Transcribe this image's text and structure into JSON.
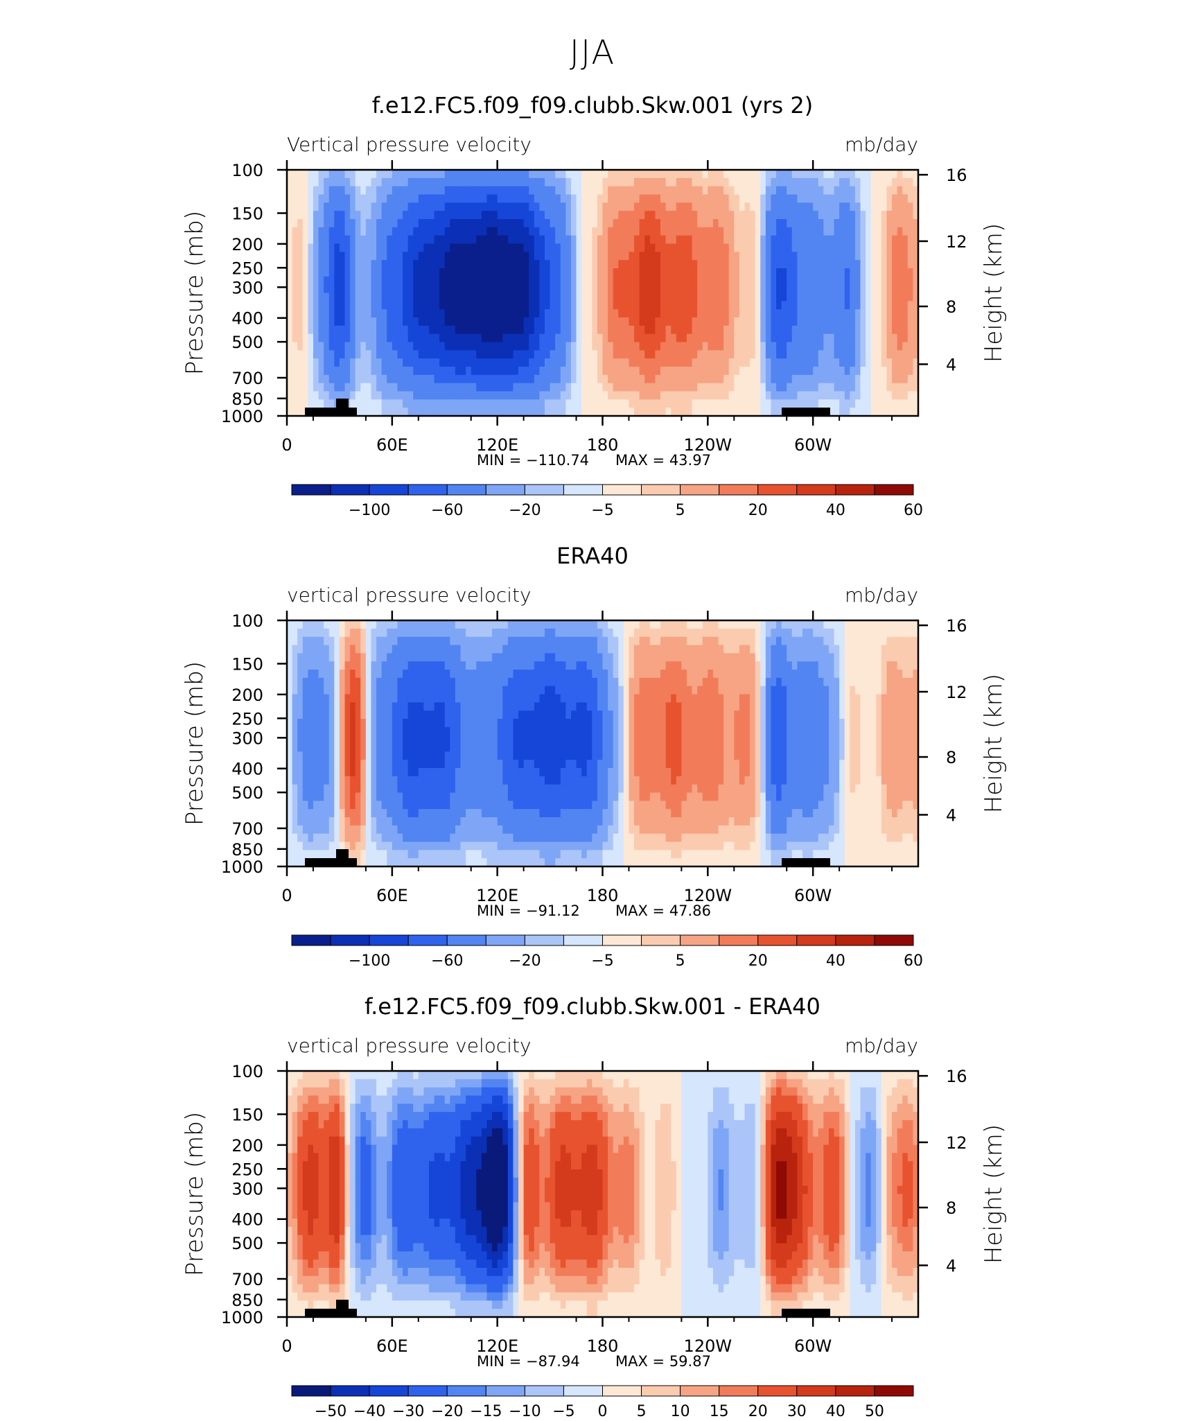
{
  "title": "JJA",
  "chart_data": [
    {
      "type": "heatmap",
      "title": "f.e12.FC5.f09_f09.clubb.Skw.001 (yrs 2)",
      "variable": "Vertical pressure velocity",
      "units": "mb/day",
      "ylabel": "Pressure (mb)",
      "y2label": "Height (km)",
      "x_ticks": [
        "0",
        "60E",
        "120E",
        "180",
        "120W",
        "60W"
      ],
      "y_ticks": [
        "100",
        "150",
        "200",
        "250",
        "300",
        "400",
        "500",
        "700",
        "850",
        "1000"
      ],
      "y2_ticks": [
        "16",
        "12",
        "8",
        "4"
      ],
      "min_label": "MIN = −110.74",
      "max_label": "MAX = 43.97",
      "min": -110.74,
      "max": 43.97,
      "colorbar_labels": [
        "−100",
        "−60",
        "−20",
        "−5",
        "5",
        "20",
        "40",
        "60"
      ],
      "colorbar_colors": [
        "#0a1f8c",
        "#0b2fb5",
        "#1646d8",
        "#2f63ee",
        "#5285f2",
        "#7fa6f6",
        "#abc5f9",
        "#d6e6fd",
        "#fde8d6",
        "#fbcbb0",
        "#f6a484",
        "#f27c5a",
        "#e8532f",
        "#d43a1c",
        "#b8230e",
        "#8f0a04"
      ]
    },
    {
      "type": "heatmap",
      "title": "ERA40",
      "variable": "vertical pressure velocity",
      "units": "mb/day",
      "ylabel": "Pressure (mb)",
      "y2label": "Height (km)",
      "x_ticks": [
        "0",
        "60E",
        "120E",
        "180",
        "120W",
        "60W"
      ],
      "y_ticks": [
        "100",
        "150",
        "200",
        "250",
        "300",
        "400",
        "500",
        "700",
        "850",
        "1000"
      ],
      "y2_ticks": [
        "16",
        "12",
        "8",
        "4"
      ],
      "min_label": "MIN = −91.12",
      "max_label": "MAX = 47.86",
      "min": -91.12,
      "max": 47.86,
      "colorbar_labels": [
        "−100",
        "−60",
        "−20",
        "−5",
        "5",
        "20",
        "40",
        "60"
      ],
      "colorbar_colors": [
        "#0a1f8c",
        "#0b2fb5",
        "#1646d8",
        "#2f63ee",
        "#5285f2",
        "#7fa6f6",
        "#abc5f9",
        "#d6e6fd",
        "#fde8d6",
        "#fbcbb0",
        "#f6a484",
        "#f27c5a",
        "#e8532f",
        "#d43a1c",
        "#b8230e",
        "#8f0a04"
      ]
    },
    {
      "type": "heatmap",
      "title": "f.e12.FC5.f09_f09.clubb.Skw.001 - ERA40",
      "variable": "vertical pressure velocity",
      "units": "mb/day",
      "ylabel": "Pressure (mb)",
      "y2label": "Height (km)",
      "x_ticks": [
        "0",
        "60E",
        "120E",
        "180",
        "120W",
        "60W"
      ],
      "y_ticks": [
        "100",
        "150",
        "200",
        "250",
        "300",
        "400",
        "500",
        "700",
        "850",
        "1000"
      ],
      "y2_ticks": [
        "16",
        "12",
        "8",
        "4"
      ],
      "min_label": "MIN = −87.94",
      "max_label": "MAX = 59.87",
      "min": -87.94,
      "max": 59.87,
      "colorbar_labels": [
        "−50",
        "−40",
        "−30",
        "−20",
        "−15",
        "−10",
        "−5",
        "0",
        "5",
        "10",
        "15",
        "20",
        "30",
        "40",
        "50"
      ],
      "colorbar_colors": [
        "#0a1a7a",
        "#0b2fb5",
        "#1646d8",
        "#2f63ee",
        "#5285f2",
        "#7fa6f6",
        "#abc5f9",
        "#d6e6fd",
        "#fde8d6",
        "#fbcbb0",
        "#f6a484",
        "#f27c5a",
        "#e8532f",
        "#d43a1c",
        "#b8230e",
        "#8f0a04"
      ]
    }
  ]
}
